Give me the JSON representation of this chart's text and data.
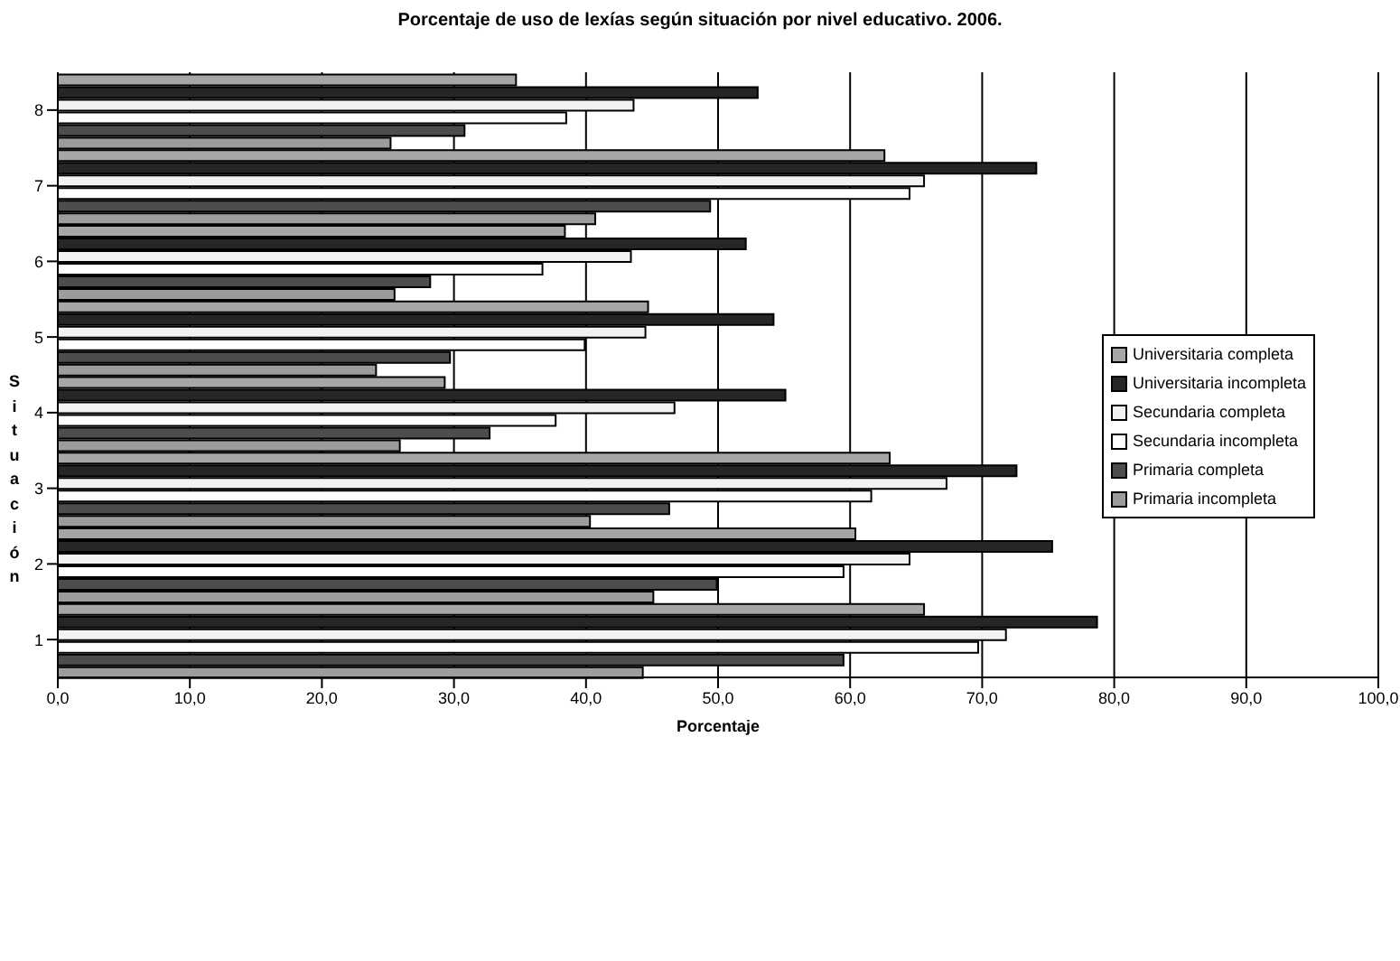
{
  "chart_data": {
    "type": "bar",
    "orientation": "horizontal",
    "title": "Porcentaje de uso de lexías según situación por nivel educativo. 2006.",
    "xlabel": "Porcentaje",
    "ylabel": "Situación",
    "categories": [
      "8",
      "7",
      "6",
      "5",
      "4",
      "3",
      "2",
      "1"
    ],
    "series": [
      {
        "name": "Universitaria completa",
        "color": "#a6a6a6",
        "values": [
          34.7,
          62.6,
          38.4,
          44.7,
          29.3,
          63.0,
          60.4,
          65.6
        ]
      },
      {
        "name": "Universitaria incompleta",
        "color": "#262626",
        "values": [
          53.0,
          74.1,
          52.1,
          54.2,
          55.1,
          72.6,
          75.3,
          78.7
        ]
      },
      {
        "name": "Secundaria completa",
        "color": "#f2f2f2",
        "values": [
          43.6,
          65.6,
          43.4,
          44.5,
          46.7,
          67.3,
          64.5,
          71.8
        ]
      },
      {
        "name": "Secundaria incompleta",
        "color": "#ffffff",
        "values": [
          38.5,
          64.5,
          36.7,
          39.9,
          37.7,
          61.6,
          59.5,
          69.7
        ]
      },
      {
        "name": "Primaria completa",
        "color": "#4d4d4d",
        "values": [
          30.8,
          49.4,
          28.2,
          29.7,
          32.7,
          46.3,
          49.9,
          59.5
        ]
      },
      {
        "name": "Primaria incompleta",
        "color": "#9c9c9c",
        "values": [
          25.2,
          40.7,
          25.5,
          24.1,
          25.9,
          40.3,
          45.1,
          44.3
        ]
      }
    ],
    "xlim": [
      0,
      100
    ],
    "xticks": [
      {
        "value": 0,
        "label": "0,0"
      },
      {
        "value": 10,
        "label": "10,0"
      },
      {
        "value": 20,
        "label": "20,0"
      },
      {
        "value": 30,
        "label": "30,0"
      },
      {
        "value": 40,
        "label": "40,0"
      },
      {
        "value": 50,
        "label": "50,0"
      },
      {
        "value": 60,
        "label": "60,0"
      },
      {
        "value": 70,
        "label": "70,0"
      },
      {
        "value": 80,
        "label": "80,0"
      },
      {
        "value": 90,
        "label": "90,0"
      },
      {
        "value": 100,
        "label": "100,0"
      }
    ],
    "grid": "x",
    "legend": "right"
  }
}
